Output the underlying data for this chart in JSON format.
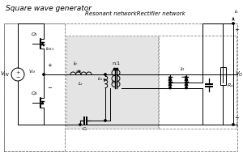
{
  "title": "Square wave generator",
  "resonant_label": "Resonant networkRectifier network",
  "bg_color": "#ffffff",
  "fig_width": 3.0,
  "fig_height": 1.99,
  "dpi": 100
}
